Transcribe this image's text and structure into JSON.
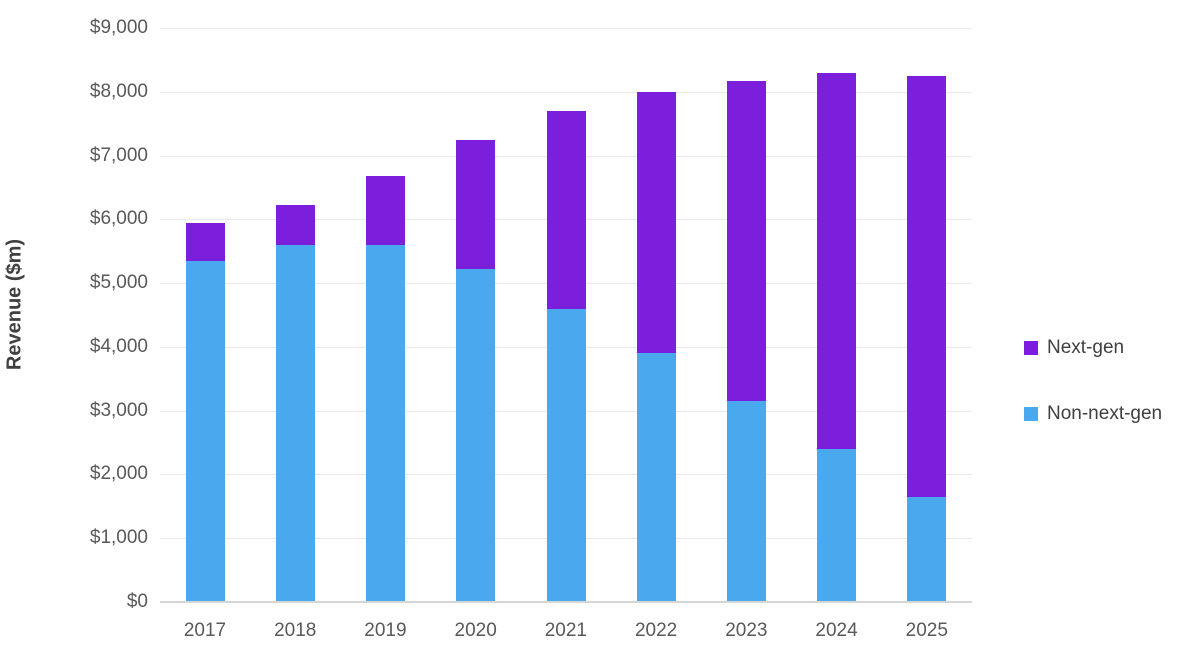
{
  "chart_data": {
    "type": "bar",
    "stacked": true,
    "title": "",
    "xlabel": "",
    "ylabel": "Revenue ($m)",
    "categories": [
      "2017",
      "2018",
      "2019",
      "2020",
      "2021",
      "2022",
      "2023",
      "2024",
      "2025"
    ],
    "series": [
      {
        "name": "Non-next-gen",
        "color": "#4aa8ef",
        "values": [
          5350,
          5600,
          5600,
          5225,
          4600,
          3900,
          3150,
          2400,
          1650
        ]
      },
      {
        "name": "Next-gen",
        "color": "#7b1fdd",
        "values": [
          600,
          625,
          1075,
          2025,
          3100,
          4100,
          5025,
          5900,
          6600
        ]
      }
    ],
    "totals": [
      5950,
      6225,
      6675,
      7250,
      7700,
      8000,
      8175,
      8300,
      8250
    ],
    "ylim": [
      0,
      9000
    ],
    "ytick_step": 1000,
    "ytick_format": "$#,##0",
    "grid": true,
    "legend_position": "right",
    "legend_order": [
      "Next-gen",
      "Non-next-gen"
    ]
  },
  "colors": {
    "gridline": "#e9e9e9",
    "axis_line": "#d6d6d6",
    "tick_label": "#595959",
    "axis_title": "#404040"
  }
}
